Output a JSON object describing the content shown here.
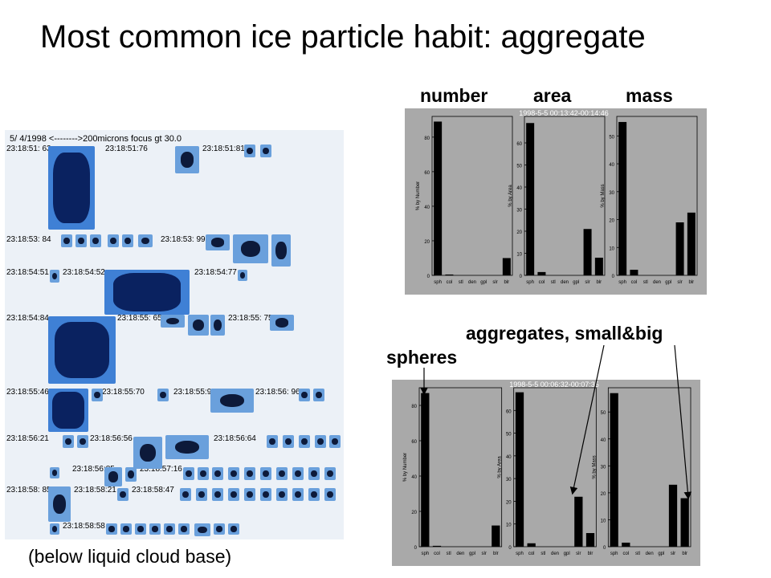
{
  "slide": {
    "title": "Most common ice particle habit: aggregate",
    "col_headers": [
      "number",
      "area",
      "mass"
    ],
    "label_aggregates": "aggregates, small&big",
    "label_spheres": "spheres",
    "caption": "(below liquid cloud base)"
  },
  "microphotos": {
    "header": "5/ 4/1998  <-------->200microns focus gt 30.0",
    "timestamps": [
      "23:18:51: 63",
      "23:18:51:76",
      "23:18:51:815",
      "23:18:53: 84",
      "23:18:53: 99",
      "23:18:54:51",
      "23:18:54:52",
      "23:18:54:77",
      "23:18:54:84",
      "23:18:55: 65",
      "23:18:55: 75",
      "23:18:55:46",
      "23:18:55:70",
      "23:18:55:98",
      "23:18:56: 96",
      "23:18:56:21",
      "23:18:56:56",
      "23:18:56:64",
      "23:18:56:85",
      "23:18:57:16",
      "23:18:58: 85",
      "23:18:58:21",
      "23:18:58:47",
      "23:18:58:58"
    ]
  },
  "panels": [
    {
      "date_range": "1998-5-5 00:13:42-00:14:46",
      "colors": {
        "bg": "#a9a9a9",
        "bar": "#000000",
        "axis": "#000000"
      },
      "chart_data": [
        {
          "type": "bar",
          "title": "",
          "ylabel": "% by Number",
          "categories": [
            "sph",
            "col",
            "stl",
            "den",
            "gpl",
            "slr",
            "blr"
          ],
          "values": [
            89,
            0.5,
            0,
            0,
            0,
            0,
            10
          ],
          "yticks": [
            0,
            20,
            40,
            60,
            80
          ],
          "ylim": [
            0,
            92
          ]
        },
        {
          "type": "bar",
          "title": "",
          "ylabel": "% by Area",
          "categories": [
            "sph",
            "col",
            "stl",
            "den",
            "gpl",
            "slr",
            "blr"
          ],
          "values": [
            69,
            1.5,
            0,
            0,
            0,
            21,
            8
          ],
          "yticks": [
            0,
            10,
            20,
            30,
            40,
            50,
            60
          ],
          "ylim": [
            0,
            72
          ]
        },
        {
          "type": "bar",
          "title": "",
          "ylabel": "% by Mass",
          "categories": [
            "sph",
            "col",
            "stl",
            "den",
            "gpl",
            "slr",
            "blr"
          ],
          "values": [
            55,
            2,
            0,
            0,
            0,
            19,
            22.5
          ],
          "yticks": [
            0,
            10,
            20,
            30,
            40,
            50
          ],
          "ylim": [
            0,
            57
          ]
        }
      ]
    },
    {
      "date_range": "1998-5-5 00:06:32-00:07:35",
      "colors": {
        "bg": "#a9a9a9",
        "bar": "#000000",
        "axis": "#000000"
      },
      "chart_data": [
        {
          "type": "bar",
          "title": "",
          "ylabel": "% by Number",
          "categories": [
            "sph",
            "col",
            "stl",
            "den",
            "gpl",
            "slr",
            "blr"
          ],
          "values": [
            87,
            0.5,
            0,
            0,
            0,
            0,
            12
          ],
          "yticks": [
            0,
            20,
            40,
            60,
            80
          ],
          "ylim": [
            0,
            90
          ]
        },
        {
          "type": "bar",
          "title": "",
          "ylabel": "% by Area",
          "categories": [
            "sph",
            "col",
            "stl",
            "den",
            "gpl",
            "slr",
            "blr"
          ],
          "values": [
            68,
            1.5,
            0,
            0,
            0,
            22,
            6
          ],
          "yticks": [
            0,
            10,
            20,
            30,
            40,
            50,
            60
          ],
          "ylim": [
            0,
            70
          ]
        },
        {
          "type": "bar",
          "title": "",
          "ylabel": "% by Mass",
          "categories": [
            "sph",
            "col",
            "stl",
            "den",
            "gpl",
            "slr",
            "blr"
          ],
          "values": [
            57,
            1.5,
            0,
            0,
            0,
            23,
            18
          ],
          "yticks": [
            0,
            10,
            20,
            30,
            40,
            50
          ],
          "ylim": [
            0,
            59
          ]
        }
      ]
    }
  ]
}
